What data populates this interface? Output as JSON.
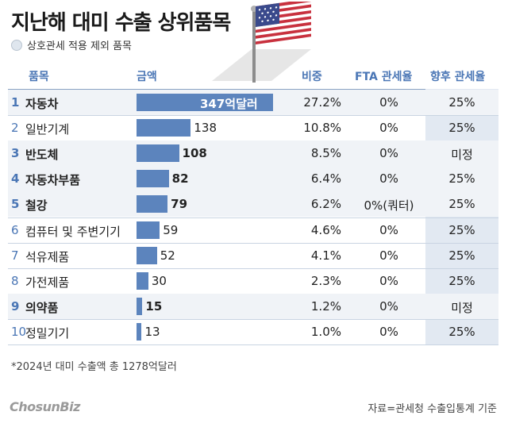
{
  "title": "지난해 대미 수출 상위품목",
  "legend": "상호관세 적용 제외 품목",
  "headers": {
    "item": "품목",
    "amount": "금액",
    "share": "비중",
    "fta": "FTA 관세율",
    "future": "향후 관세율"
  },
  "colors": {
    "bar": "#5c84bd",
    "accent": "#4a76b5",
    "shade": "#e2e9f2",
    "excluded_row": "#f0f3f7"
  },
  "icons": [
    "us-flag-icon"
  ],
  "chart_data": {
    "type": "bar",
    "title": "지난해 대미 수출 상위품목",
    "unit": "억달러",
    "categories": [
      "자동차",
      "일반기계",
      "반도체",
      "자동차부품",
      "철강",
      "컴퓨터 및 주변기기",
      "석유제품",
      "가전제품",
      "의약품",
      "정밀기기"
    ],
    "values": [
      347,
      138,
      108,
      82,
      79,
      59,
      52,
      30,
      15,
      13
    ],
    "rows": [
      {
        "rank": "1",
        "name": "자동차",
        "value": 347,
        "value_label": "347억달러",
        "share": "27.2%",
        "fta": "0%",
        "future": "25%",
        "excluded": true
      },
      {
        "rank": "2",
        "name": "일반기계",
        "value": 138,
        "value_label": "138",
        "share": "10.8%",
        "fta": "0%",
        "future": "25%",
        "excluded": false
      },
      {
        "rank": "3",
        "name": "반도체",
        "value": 108,
        "value_label": "108",
        "share": "8.5%",
        "fta": "0%",
        "future": "미정",
        "excluded": true
      },
      {
        "rank": "4",
        "name": "자동차부품",
        "value": 82,
        "value_label": "82",
        "share": "6.4%",
        "fta": "0%",
        "future": "25%",
        "excluded": true
      },
      {
        "rank": "5",
        "name": "철강",
        "value": 79,
        "value_label": "79",
        "share": "6.2%",
        "fta": "0%(쿼터)",
        "future": "25%",
        "excluded": true
      },
      {
        "rank": "6",
        "name": "컴퓨터 및 주변기기",
        "value": 59,
        "value_label": "59",
        "share": "4.6%",
        "fta": "0%",
        "future": "25%",
        "excluded": false
      },
      {
        "rank": "7",
        "name": "석유제품",
        "value": 52,
        "value_label": "52",
        "share": "4.1%",
        "fta": "0%",
        "future": "25%",
        "excluded": false
      },
      {
        "rank": "8",
        "name": "가전제품",
        "value": 30,
        "value_label": "30",
        "share": "2.3%",
        "fta": "0%",
        "future": "25%",
        "excluded": false
      },
      {
        "rank": "9",
        "name": "의약품",
        "value": 15,
        "value_label": "15",
        "share": "1.2%",
        "fta": "0%",
        "future": "미정",
        "excluded": true
      },
      {
        "rank": "10",
        "name": "정밀기기",
        "value": 13,
        "value_label": "13",
        "share": "1.0%",
        "fta": "0%",
        "future": "25%",
        "excluded": false
      }
    ],
    "xlim": [
      0,
      347
    ]
  },
  "footnote": "*2024년 대미 수출액 총 1278억달러",
  "logo": "ChosunBiz",
  "source": "자료=관세청 수출입통계 기준"
}
